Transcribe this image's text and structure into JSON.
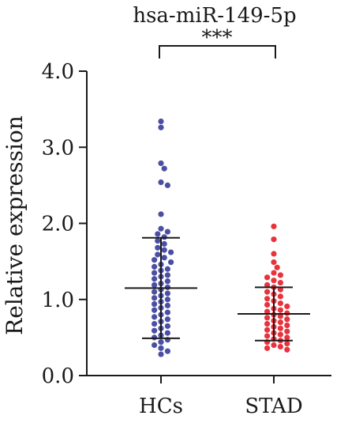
{
  "chart_data": {
    "type": "scatter",
    "title": "hsa-miR-149-5p",
    "ylabel": "Relative expression",
    "xlabel": "",
    "categories": [
      "HCs",
      "STAD"
    ],
    "ylim": [
      0,
      4
    ],
    "yticks": [
      "0.0",
      "1.0",
      "2.0",
      "3.0",
      "4.0"
    ],
    "significance": "***",
    "grid": false,
    "groups": [
      {
        "name": "HCs",
        "color": "#4a4fa3",
        "mean": 1.15,
        "sd_upper": 1.81,
        "sd_lower": 0.49,
        "points": [
          3.34,
          3.26,
          2.79,
          2.72,
          2.54,
          2.5,
          2.12,
          1.93,
          1.89,
          1.86,
          1.82,
          1.77,
          1.73,
          1.68,
          1.65,
          1.62,
          1.59,
          1.55,
          1.52,
          1.49,
          1.46,
          1.43,
          1.4,
          1.38,
          1.35,
          1.32,
          1.3,
          1.27,
          1.24,
          1.21,
          1.19,
          1.16,
          1.13,
          1.1,
          1.08,
          1.05,
          1.02,
          1.0,
          0.97,
          0.94,
          0.92,
          0.89,
          0.86,
          0.83,
          0.8,
          0.77,
          0.74,
          0.71,
          0.68,
          0.65,
          0.62,
          0.59,
          0.56,
          0.53,
          0.5,
          0.47,
          0.44,
          0.4,
          0.36,
          0.32,
          0.28
        ]
      },
      {
        "name": "STAD",
        "color": "#e8333d",
        "mean": 0.81,
        "sd_upper": 1.16,
        "sd_lower": 0.46,
        "points": [
          1.96,
          1.79,
          1.6,
          1.49,
          1.42,
          1.35,
          1.32,
          1.29,
          1.25,
          1.22,
          1.19,
          1.16,
          1.13,
          1.1,
          1.07,
          1.04,
          1.01,
          0.98,
          0.95,
          0.93,
          0.91,
          0.88,
          0.86,
          0.84,
          0.82,
          0.8,
          0.78,
          0.76,
          0.74,
          0.72,
          0.7,
          0.68,
          0.66,
          0.64,
          0.62,
          0.6,
          0.58,
          0.56,
          0.54,
          0.52,
          0.5,
          0.48,
          0.46,
          0.44,
          0.42,
          0.4,
          0.38,
          0.36,
          0.34
        ]
      }
    ]
  }
}
